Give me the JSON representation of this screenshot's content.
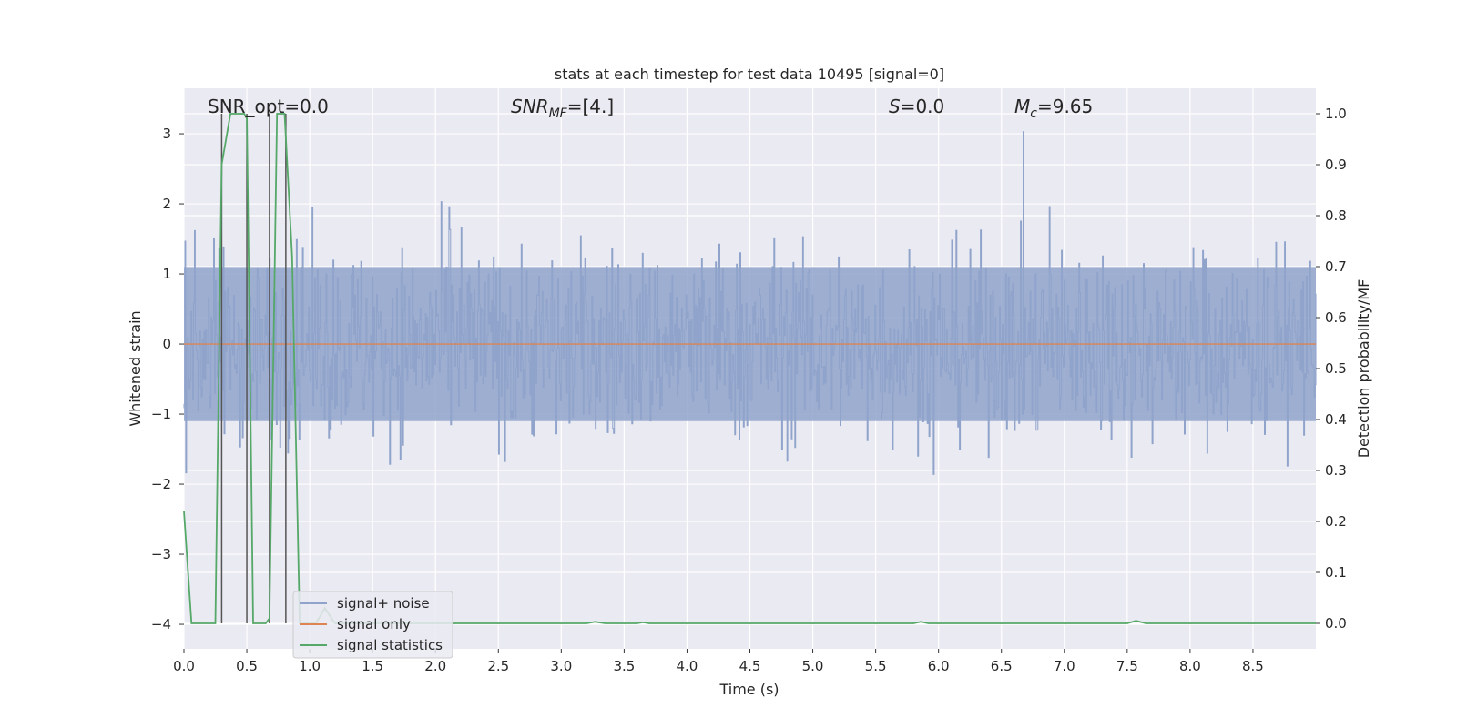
{
  "chart_data": {
    "type": "line",
    "title": "stats at each timestep for test data 10495 [signal=0]",
    "xlabel": "Time (s)",
    "ylabel": "Whitened strain",
    "ylabel_right": "Detection probability/MF",
    "xlim": [
      0.0,
      9.0
    ],
    "ylim": [
      -4.35,
      3.65
    ],
    "ylim_right": [
      -0.05,
      1.05
    ],
    "xticks": [
      "0.0",
      "0.5",
      "1.0",
      "1.5",
      "2.0",
      "2.5",
      "3.0",
      "3.5",
      "4.0",
      "4.5",
      "5.0",
      "5.5",
      "6.0",
      "6.5",
      "7.0",
      "7.5",
      "8.0",
      "8.5"
    ],
    "yticks_left": [
      "3",
      "2",
      "1",
      "0",
      "−1",
      "−2",
      "−3",
      "−4"
    ],
    "yticks_right": [
      "1.0",
      "0.9",
      "0.8",
      "0.7",
      "0.6",
      "0.5",
      "0.4",
      "0.3",
      "0.2",
      "0.1",
      "0.0"
    ],
    "grid": true,
    "legend_position": "lower-left",
    "annotations": {
      "snr_opt": "SNR_opt=0.0",
      "snr_mf_base": "SNR",
      "snr_mf_sub": "MF",
      "snr_mf_value": "=[4.]",
      "s_base": "S",
      "s_value": "=0.0",
      "mc_base": "M",
      "mc_sub": "c",
      "mc_value": "=9.65"
    },
    "series": [
      {
        "name": "signal+ noise",
        "color": "#8fa3cb",
        "description_values": "whitened noise, roughly ±2 band with spikes up to ~3.3 and down to ~-4.0"
      },
      {
        "name": "signal only",
        "color": "#dd8452",
        "values": [
          [
            0.0,
            0.0
          ],
          [
            9.0,
            0.0
          ]
        ]
      },
      {
        "name": "signal statistics",
        "color": "#55a868",
        "points": [
          [
            0.0,
            0.22
          ],
          [
            0.06,
            0.0
          ],
          [
            0.25,
            0.0
          ],
          [
            0.3,
            0.9
          ],
          [
            0.37,
            1.0
          ],
          [
            0.48,
            1.0
          ],
          [
            0.5,
            0.99
          ],
          [
            0.55,
            0.0
          ],
          [
            0.65,
            0.0
          ],
          [
            0.68,
            0.01
          ],
          [
            0.74,
            1.0
          ],
          [
            0.8,
            1.0
          ],
          [
            0.86,
            0.72
          ],
          [
            0.92,
            0.0
          ],
          [
            1.05,
            0.0
          ],
          [
            1.12,
            0.03
          ],
          [
            1.2,
            0.0
          ],
          [
            3.2,
            0.0
          ],
          [
            3.27,
            0.003
          ],
          [
            3.35,
            0.0
          ],
          [
            3.6,
            0.0
          ],
          [
            3.65,
            0.002
          ],
          [
            3.7,
            0.0
          ],
          [
            5.8,
            0.0
          ],
          [
            5.86,
            0.003
          ],
          [
            5.92,
            0.0
          ],
          [
            7.5,
            0.0
          ],
          [
            7.57,
            0.005
          ],
          [
            7.65,
            0.0
          ],
          [
            9.0,
            0.0
          ]
        ]
      },
      {
        "name": "",
        "color": "#555555",
        "vlines": [
          0.3,
          0.5,
          0.68,
          0.81
        ]
      }
    ]
  }
}
